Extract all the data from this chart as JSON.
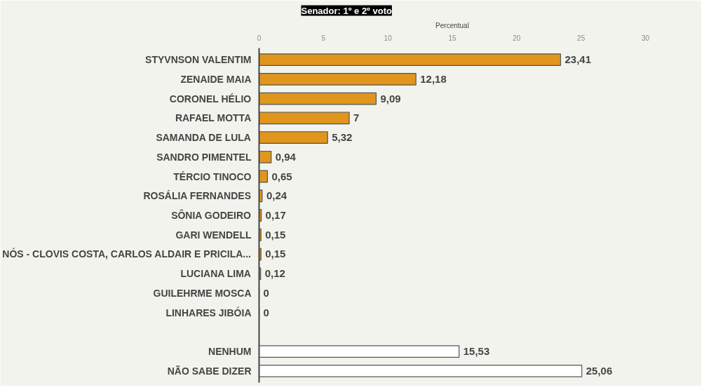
{
  "chart_data": {
    "type": "bar",
    "orientation": "horizontal",
    "title": "Senador: 1º e 2º voto",
    "xlabel": "Percentual",
    "categories": [
      "STYVNSON VALENTIM",
      "ZENAIDE MAIA",
      "CORONEL HÉLIO",
      "RAFAEL MOTTA",
      "SAMANDA DE LULA",
      "SANDRO PIMENTEL",
      "TÉRCIO TINOCO",
      "ROSÁLIA FERNANDES",
      "SÔNIA GODEIRO",
      "GARI WENDELL",
      "NÓS - CLOVIS COSTA, CARLOS ALDAIR E PRICILA...",
      "LUCIANA LIMA",
      "GUILEHRME MOSCA",
      "LINHARES JIBÓIA",
      null,
      "NENHUM",
      "NÃO SABE DIZER"
    ],
    "values": [
      23.41,
      12.18,
      9.09,
      7,
      5.32,
      0.94,
      0.65,
      0.24,
      0.17,
      0.15,
      0.15,
      0.12,
      0,
      0,
      null,
      15.53,
      25.06
    ],
    "value_labels": [
      "23,41",
      "12,18",
      "9,09",
      "7",
      "5,32",
      "0,94",
      "0,65",
      "0,24",
      "0,17",
      "0,15",
      "0,15",
      "0,12",
      "0",
      "0",
      null,
      "15,53",
      "25,06"
    ],
    "colors": [
      "#e0961c",
      "#e0961c",
      "#e0961c",
      "#e0961c",
      "#e0961c",
      "#e0961c",
      "#e0961c",
      "#e0961c",
      "#e0961c",
      "#e0961c",
      "#e0961c",
      "#e0961c",
      "#555555",
      "#555555",
      null,
      "#ffffff",
      "#ffffff"
    ],
    "xlim": [
      0,
      30
    ],
    "xticks": [
      0,
      5,
      10,
      15,
      20,
      25,
      30
    ],
    "grid": false
  }
}
